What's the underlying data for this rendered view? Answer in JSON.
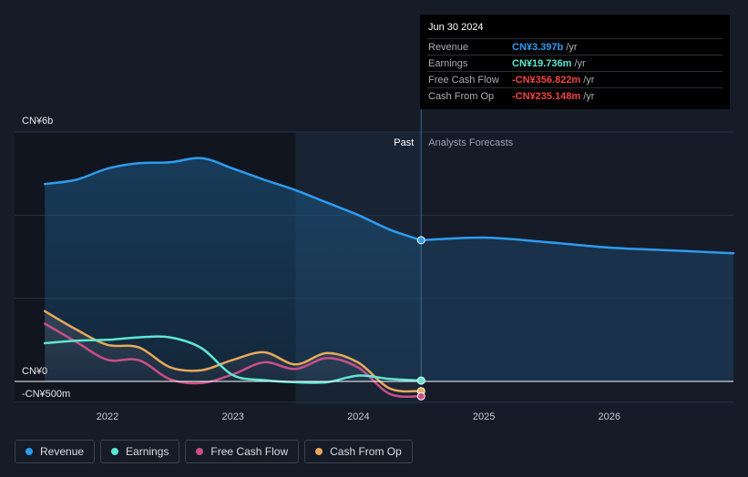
{
  "tooltip": {
    "date": "Jun 30 2024",
    "rows": [
      {
        "label": "Revenue",
        "value": "CN¥3.397b",
        "unit": "/yr",
        "color": "#2d9cf0"
      },
      {
        "label": "Earnings",
        "value": "CN¥19.736m",
        "unit": "/yr",
        "color": "#5ee8d2"
      },
      {
        "label": "Free Cash Flow",
        "value": "-CN¥356.822m",
        "unit": "/yr",
        "color": "#f24343"
      },
      {
        "label": "Cash From Op",
        "value": "-CN¥235.148m",
        "unit": "/yr",
        "color": "#f24343"
      }
    ]
  },
  "legend": [
    {
      "label": "Revenue",
      "color": "#2d9cf0"
    },
    {
      "label": "Earnings",
      "color": "#5ee8d2"
    },
    {
      "label": "Free Cash Flow",
      "color": "#c94f88"
    },
    {
      "label": "Cash From Op",
      "color": "#e8a85a"
    }
  ],
  "chart_data": {
    "type": "line",
    "title": "",
    "ylabel": "",
    "xlabel": "",
    "units": "CN¥ millions",
    "ylim": [
      -500,
      6000
    ],
    "y_labels": [
      "CN¥6b",
      "CN¥0",
      "-CN¥500m"
    ],
    "x_ticks": [
      2022,
      2023,
      2024,
      2025,
      2026
    ],
    "xlim": [
      2021.3,
      2027.0
    ],
    "past_label": "Past",
    "forecast_label": "Analysts Forecasts",
    "past_shade_start": 2023.5,
    "divider_x": 2024.5,
    "series": [
      {
        "name": "Revenue",
        "color": "#2d9cf0",
        "x": [
          2021.5,
          2021.75,
          2022.0,
          2022.25,
          2022.5,
          2022.75,
          2023.0,
          2023.25,
          2023.5,
          2023.75,
          2024.0,
          2024.25,
          2024.5
        ],
        "values": [
          4750,
          4850,
          5120,
          5250,
          5270,
          5370,
          5120,
          4850,
          4600,
          4300,
          4000,
          3650,
          3397
        ]
      },
      {
        "name": "Revenue Forecast",
        "color": "#2d9cf0",
        "x": [
          2024.5,
          2025.0,
          2025.5,
          2026.0,
          2026.5,
          2027.0
        ],
        "values": [
          3397,
          3460,
          3350,
          3220,
          3150,
          3080
        ]
      },
      {
        "name": "Earnings",
        "color": "#5ee8d2",
        "x": [
          2021.5,
          2021.75,
          2022.0,
          2022.25,
          2022.5,
          2022.75,
          2023.0,
          2023.25,
          2023.5,
          2023.75,
          2024.0,
          2024.25,
          2024.5
        ],
        "values": [
          920,
          980,
          1000,
          1060,
          1060,
          800,
          150,
          30,
          -20,
          -20,
          140,
          60,
          19.736
        ]
      },
      {
        "name": "Free Cash Flow",
        "color": "#c94f88",
        "x": [
          2021.5,
          2021.75,
          2022.0,
          2022.25,
          2022.5,
          2022.75,
          2023.0,
          2023.25,
          2023.5,
          2023.75,
          2024.0,
          2024.25,
          2024.5
        ],
        "values": [
          1390,
          950,
          520,
          510,
          50,
          -40,
          170,
          460,
          300,
          560,
          330,
          -300,
          -356.822
        ]
      },
      {
        "name": "Cash From Op",
        "color": "#e8a85a",
        "x": [
          2021.5,
          2021.75,
          2022.0,
          2022.25,
          2022.5,
          2022.75,
          2023.0,
          2023.25,
          2023.5,
          2023.75,
          2024.0,
          2024.25,
          2024.5
        ],
        "values": [
          1690,
          1250,
          880,
          820,
          340,
          270,
          520,
          700,
          410,
          680,
          450,
          -170,
          -235.148
        ]
      }
    ]
  }
}
